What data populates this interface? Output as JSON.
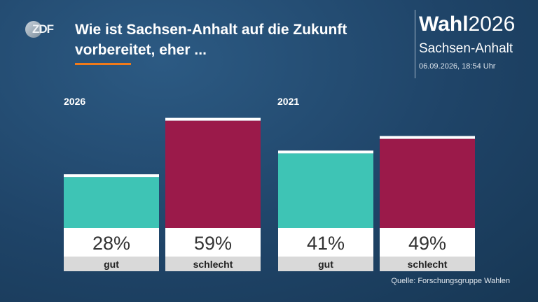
{
  "header": {
    "logo_text": "ZDF",
    "title": "Wie ist Sachsen-Anhalt auf die Zukunft vorbereitet, eher ...",
    "brand_bold": "Wahl",
    "brand_year": "2026",
    "region": "Sachsen-Anhalt",
    "timestamp": "06.09.2026, 18:54 Uhr"
  },
  "colors": {
    "gut": "#3ec4b5",
    "schlecht": "#9b1a4a",
    "accent": "#f07a1a"
  },
  "chart_data": {
    "type": "bar",
    "groups": [
      {
        "name": "2026",
        "bars": [
          {
            "category": "gut",
            "value": 28,
            "label": "28%"
          },
          {
            "category": "schlecht",
            "value": 59,
            "label": "59%"
          }
        ]
      },
      {
        "name": "2021",
        "bars": [
          {
            "category": "gut",
            "value": 41,
            "label": "41%"
          },
          {
            "category": "schlecht",
            "value": 49,
            "label": "49%"
          }
        ]
      }
    ],
    "ylim": [
      0,
      100
    ],
    "grid": false
  },
  "footer": {
    "source": "Quelle: Forschungsgruppe Wahlen"
  }
}
